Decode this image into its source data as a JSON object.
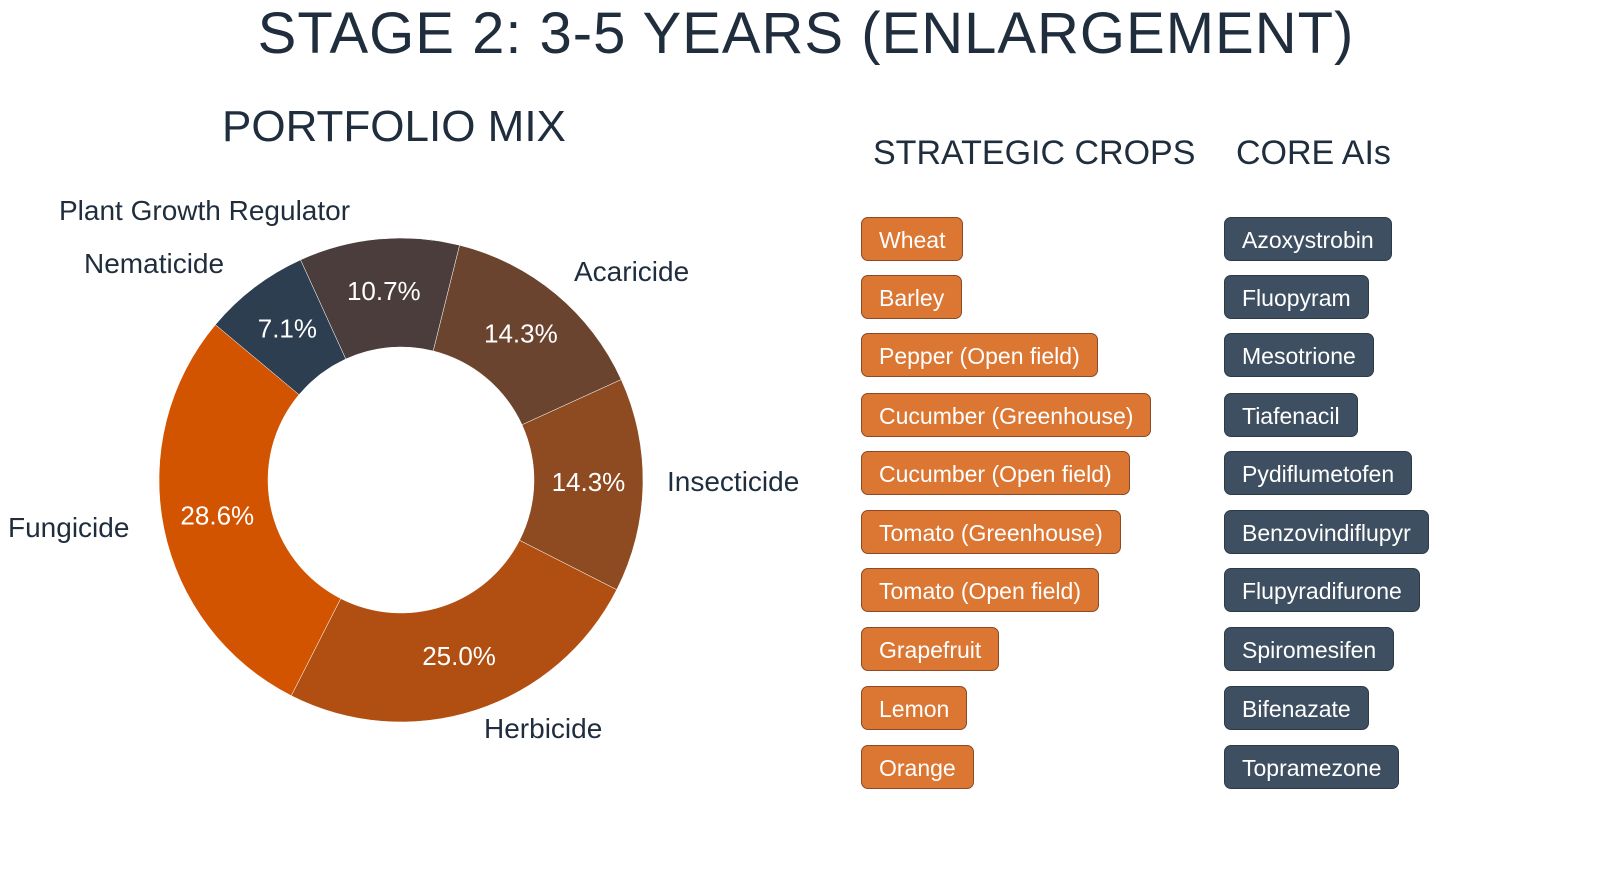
{
  "title": "STAGE 2: 3-5 YEARS (ENLARGEMENT)",
  "chart_data": {
    "type": "pie",
    "title": "PORTFOLIO MIX",
    "donut": true,
    "categories": [
      "Acaricide",
      "Insecticide",
      "Herbicide",
      "Fungicide",
      "Nematicide",
      "Plant Growth Regulator"
    ],
    "values": [
      14.3,
      14.3,
      25.0,
      28.6,
      7.1,
      10.7
    ],
    "data_labels": [
      "14.3%",
      "14.3%",
      "25.0%",
      "28.6%",
      "7.1%",
      "10.7%"
    ],
    "colors": [
      "#6b4430",
      "#8e4a20",
      "#b14f12",
      "#d35400",
      "#2c3e50",
      "#4a3d3b"
    ]
  },
  "strategic_crops": {
    "heading": "STRATEGIC CROPS",
    "items": [
      "Wheat",
      "Barley",
      "Pepper (Open field)",
      "Cucumber (Greenhouse)",
      "Cucumber (Open field)",
      "Tomato (Greenhouse)",
      "Tomato (Open field)",
      "Grapefruit",
      "Lemon",
      "Orange"
    ],
    "color": "#dc7633"
  },
  "core_ais": {
    "heading": "CORE AIs",
    "items": [
      "Azoxystrobin",
      "Fluopyram",
      "Mesotrione",
      "Tiafenacil",
      "Pydiflumetofen",
      "Benzovindiflupyr",
      "Flupyradifurone",
      "Spiromesifen",
      "Bifenazate",
      "Topramezone"
    ],
    "color": "#3e4f61"
  }
}
